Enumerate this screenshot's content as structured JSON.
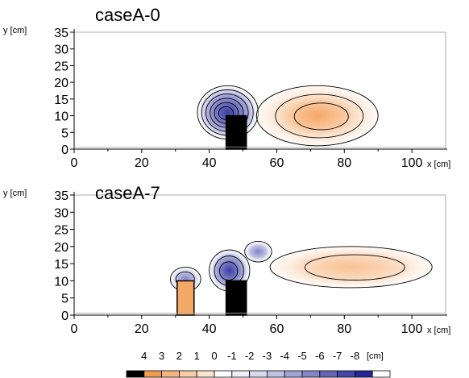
{
  "chart_data": [
    {
      "type": "heatmap",
      "title": "caseA-0",
      "xlabel": "x [cm]",
      "ylabel": "y [cm]",
      "xlim": [
        0,
        110
      ],
      "ylim": [
        0,
        35
      ],
      "xticks": [
        "0",
        "20",
        "40",
        "60",
        "80",
        "100"
      ],
      "yticks": [
        "0",
        "5",
        "10",
        "15",
        "20",
        "25",
        "30",
        "35"
      ],
      "obstacles": [
        {
          "name": "black-block",
          "x": [
            45,
            51
          ],
          "y": [
            0,
            10
          ],
          "color": "#000000"
        }
      ],
      "regions": [
        {
          "sign": "negative",
          "center": [
            45.5,
            11
          ],
          "radius": [
            9,
            8
          ],
          "peak": -7,
          "levels": 6
        },
        {
          "sign": "positive",
          "center": [
            72,
            10
          ],
          "radius": [
            18,
            9
          ],
          "peak": 3,
          "levels": 3
        }
      ]
    },
    {
      "type": "heatmap",
      "title": "caseA-7",
      "xlabel": "x [cm]",
      "ylabel": "y [cm]",
      "xlim": [
        0,
        110
      ],
      "ylim": [
        0,
        35
      ],
      "xticks": [
        "0",
        "20",
        "40",
        "60",
        "80",
        "100"
      ],
      "yticks": [
        "0",
        "5",
        "10",
        "15",
        "20",
        "25",
        "30",
        "35"
      ],
      "obstacles": [
        {
          "name": "orange-block",
          "x": [
            30.5,
            35.5
          ],
          "y": [
            0,
            10
          ],
          "color": "#f4a866"
        },
        {
          "name": "black-block",
          "x": [
            45,
            51
          ],
          "y": [
            0,
            10
          ],
          "color": "#000000"
        }
      ],
      "regions": [
        {
          "sign": "negative",
          "center": [
            33,
            10.5
          ],
          "radius": [
            4.5,
            3.5
          ],
          "peak": -3,
          "levels": 2
        },
        {
          "sign": "negative",
          "center": [
            46,
            13
          ],
          "radius": [
            6,
            6
          ],
          "peak": -4,
          "levels": 3
        },
        {
          "sign": "negative",
          "center": [
            54.5,
            18.5
          ],
          "radius": [
            4,
            3
          ],
          "peak": -2,
          "levels": 1
        },
        {
          "sign": "positive",
          "center": [
            82,
            14
          ],
          "radius": [
            24,
            6
          ],
          "peak": 2,
          "levels": 2
        }
      ]
    }
  ],
  "colorbar": {
    "unit": "[cm]",
    "labels": [
      "4",
      "3",
      "2",
      "1",
      "0",
      "-1",
      "-2",
      "-3",
      "-4",
      "-5",
      "-6",
      "-7",
      "-8"
    ],
    "colors": [
      "#000000",
      "#f39b4f",
      "#f6b47c",
      "#f9cda6",
      "#fce4d1",
      "#ffffff",
      "#eeeef8",
      "#d8d8ee",
      "#bfc0e3",
      "#a3a4d6",
      "#8586c8",
      "#6465b8",
      "#4445a8",
      "#23259a",
      "#ffffff"
    ]
  }
}
